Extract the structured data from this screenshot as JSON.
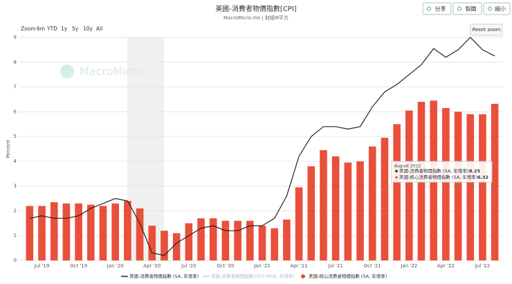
{
  "chart_data": {
    "type": "bar-line",
    "title": "美國-消費者物價指數[CPI]",
    "subtitle": "MacroMicro.me | 財經M平方",
    "watermark": "MacroMicro",
    "y_label": "Percent",
    "categories": [
      null,
      "Jul '19",
      null,
      null,
      "Oct '19",
      null,
      null,
      "Jan '20",
      null,
      null,
      "Apr '20",
      null,
      null,
      "Jul '20",
      null,
      null,
      "Oct '20",
      null,
      null,
      "Jan '21",
      null,
      null,
      "Apr '21",
      null,
      null,
      "Jul '21",
      null,
      null,
      "Oct '21",
      null,
      null,
      "Jan '22",
      null,
      null,
      "Apr '22",
      null,
      null,
      "Jul '22",
      null
    ],
    "series": [
      {
        "name": "美國-消費者物價指數 (SA, 年增率)",
        "type": "line",
        "color": "#222222",
        "values": [
          1.7,
          1.8,
          1.7,
          1.7,
          1.8,
          2.1,
          2.3,
          2.5,
          2.4,
          1.5,
          0.3,
          0.2,
          0.7,
          1.0,
          1.3,
          1.4,
          1.2,
          1.2,
          1.4,
          1.4,
          1.7,
          2.6,
          4.2,
          5.0,
          5.4,
          5.4,
          5.3,
          5.4,
          6.2,
          6.8,
          7.1,
          7.5,
          7.9,
          8.55,
          8.2,
          8.5,
          9.0,
          8.5,
          8.25
        ]
      },
      {
        "name": "美國-消費者物價指數[CPI] (NSA, 年增率)",
        "type": "line",
        "color": "#cccccc",
        "visible": false
      },
      {
        "name": "美國-核心消費者物價指數 (SA, 年增率)",
        "type": "bar",
        "color": "#e8503c",
        "values": [
          2.2,
          2.2,
          2.35,
          2.3,
          2.3,
          2.25,
          2.2,
          2.3,
          2.4,
          2.1,
          1.4,
          1.2,
          1.1,
          1.5,
          1.7,
          1.7,
          1.6,
          1.6,
          1.6,
          1.4,
          1.3,
          1.65,
          2.95,
          3.8,
          4.45,
          4.2,
          3.95,
          4.0,
          4.6,
          4.95,
          5.5,
          6.05,
          6.4,
          6.45,
          6.15,
          6.0,
          5.9,
          5.9,
          6.32
        ]
      }
    ],
    "ylim": [
      0,
      9
    ],
    "yticks": [
      0,
      1,
      2,
      3,
      4,
      5,
      6,
      7,
      8,
      9
    ],
    "grid": true,
    "tooltip": {
      "header": "August 2022",
      "labels": [
        "美國-消費者物價指數 (SA, 年增率):",
        "美國-核心消費者物價指數 (SA, 年增率):"
      ]
    }
  },
  "ui": {
    "buttons": [
      "分享",
      "製圖",
      "縮小"
    ],
    "zoom_label": "Zoom",
    "zoom_options": [
      "6m",
      "YTD",
      "1y",
      "5y",
      "10y",
      "All"
    ],
    "reset": "Reset zoom"
  }
}
